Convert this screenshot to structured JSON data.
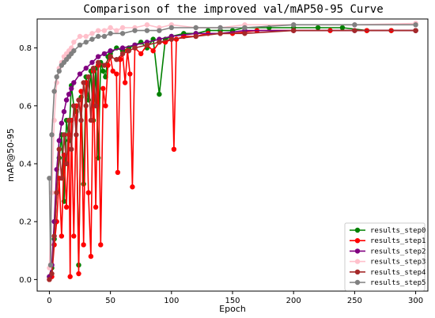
{
  "chart_data": {
    "type": "line",
    "title": "Comparison of the improved val/mAP50-95 Curve",
    "xlabel": "Epoch",
    "ylabel": "mAP@50-95",
    "xlim": [
      -10,
      310
    ],
    "ylim": [
      -0.04,
      0.9
    ],
    "xticks": [
      0,
      50,
      100,
      150,
      200,
      250,
      300
    ],
    "yticks": [
      0.0,
      0.2,
      0.4,
      0.6,
      0.8
    ],
    "legend_position": "lower-right",
    "grid": false,
    "series": [
      {
        "name": "results_step0",
        "color": "#008000",
        "points": [
          [
            0,
            0.01
          ],
          [
            2,
            0.04
          ],
          [
            4,
            0.14
          ],
          [
            6,
            0.3
          ],
          [
            8,
            0.42
          ],
          [
            10,
            0.5
          ],
          [
            12,
            0.27
          ],
          [
            14,
            0.55
          ],
          [
            16,
            0.48
          ],
          [
            18,
            0.67
          ],
          [
            20,
            0.6
          ],
          [
            22,
            0.58
          ],
          [
            24,
            0.05
          ],
          [
            26,
            0.63
          ],
          [
            28,
            0.33
          ],
          [
            30,
            0.7
          ],
          [
            32,
            0.62
          ],
          [
            34,
            0.72
          ],
          [
            36,
            0.55
          ],
          [
            38,
            0.73
          ],
          [
            40,
            0.42
          ],
          [
            42,
            0.75
          ],
          [
            44,
            0.72
          ],
          [
            46,
            0.7
          ],
          [
            48,
            0.77
          ],
          [
            50,
            0.78
          ],
          [
            55,
            0.8
          ],
          [
            60,
            0.79
          ],
          [
            65,
            0.8
          ],
          [
            70,
            0.81
          ],
          [
            75,
            0.82
          ],
          [
            80,
            0.8
          ],
          [
            85,
            0.83
          ],
          [
            90,
            0.64
          ],
          [
            95,
            0.83
          ],
          [
            100,
            0.84
          ],
          [
            110,
            0.85
          ],
          [
            120,
            0.85
          ],
          [
            130,
            0.86
          ],
          [
            140,
            0.86
          ],
          [
            150,
            0.86
          ],
          [
            160,
            0.87
          ],
          [
            180,
            0.87
          ],
          [
            200,
            0.87
          ],
          [
            220,
            0.87
          ],
          [
            240,
            0.87
          ],
          [
            260,
            0.86
          ],
          [
            280,
            0.86
          ],
          [
            300,
            0.86
          ]
        ]
      },
      {
        "name": "results_step1",
        "color": "#ff0000",
        "points": [
          [
            0,
            0.0
          ],
          [
            2,
            0.01
          ],
          [
            4,
            0.12
          ],
          [
            6,
            0.2
          ],
          [
            8,
            0.35
          ],
          [
            10,
            0.15
          ],
          [
            12,
            0.43
          ],
          [
            14,
            0.25
          ],
          [
            16,
            0.5
          ],
          [
            17,
            0.01
          ],
          [
            18,
            0.55
          ],
          [
            20,
            0.15
          ],
          [
            22,
            0.6
          ],
          [
            24,
            0.02
          ],
          [
            26,
            0.65
          ],
          [
            28,
            0.12
          ],
          [
            30,
            0.68
          ],
          [
            32,
            0.3
          ],
          [
            34,
            0.08
          ],
          [
            36,
            0.72
          ],
          [
            38,
            0.25
          ],
          [
            40,
            0.74
          ],
          [
            42,
            0.12
          ],
          [
            44,
            0.66
          ],
          [
            46,
            0.6
          ],
          [
            48,
            0.74
          ],
          [
            50,
            0.77
          ],
          [
            52,
            0.72
          ],
          [
            55,
            0.71
          ],
          [
            56,
            0.37
          ],
          [
            58,
            0.76
          ],
          [
            60,
            0.78
          ],
          [
            62,
            0.68
          ],
          [
            64,
            0.79
          ],
          [
            66,
            0.71
          ],
          [
            68,
            0.32
          ],
          [
            70,
            0.8
          ],
          [
            75,
            0.78
          ],
          [
            80,
            0.81
          ],
          [
            85,
            0.79
          ],
          [
            90,
            0.82
          ],
          [
            95,
            0.82
          ],
          [
            100,
            0.83
          ],
          [
            102,
            0.45
          ],
          [
            104,
            0.83
          ],
          [
            110,
            0.84
          ],
          [
            120,
            0.84
          ],
          [
            130,
            0.85
          ],
          [
            140,
            0.85
          ],
          [
            150,
            0.85
          ],
          [
            170,
            0.86
          ],
          [
            200,
            0.86
          ],
          [
            230,
            0.86
          ],
          [
            260,
            0.86
          ],
          [
            280,
            0.86
          ],
          [
            300,
            0.86
          ]
        ]
      },
      {
        "name": "results_step2",
        "color": "#800080",
        "points": [
          [
            0,
            0.01
          ],
          [
            2,
            0.05
          ],
          [
            4,
            0.2
          ],
          [
            6,
            0.38
          ],
          [
            8,
            0.48
          ],
          [
            10,
            0.54
          ],
          [
            12,
            0.58
          ],
          [
            14,
            0.62
          ],
          [
            16,
            0.64
          ],
          [
            18,
            0.66
          ],
          [
            20,
            0.68
          ],
          [
            25,
            0.71
          ],
          [
            30,
            0.73
          ],
          [
            35,
            0.75
          ],
          [
            40,
            0.77
          ],
          [
            45,
            0.78
          ],
          [
            50,
            0.79
          ],
          [
            60,
            0.8
          ],
          [
            70,
            0.81
          ],
          [
            80,
            0.82
          ],
          [
            90,
            0.83
          ],
          [
            100,
            0.84
          ],
          [
            120,
            0.85
          ],
          [
            140,
            0.85
          ],
          [
            160,
            0.86
          ],
          [
            200,
            0.86
          ],
          [
            250,
            0.86
          ],
          [
            300,
            0.86
          ]
        ]
      },
      {
        "name": "results_step3",
        "color": "#ffc0cb",
        "points": [
          [
            0,
            0.04
          ],
          [
            2,
            0.3
          ],
          [
            4,
            0.55
          ],
          [
            6,
            0.68
          ],
          [
            8,
            0.73
          ],
          [
            10,
            0.75
          ],
          [
            12,
            0.77
          ],
          [
            14,
            0.78
          ],
          [
            16,
            0.79
          ],
          [
            18,
            0.8
          ],
          [
            20,
            0.82
          ],
          [
            25,
            0.84
          ],
          [
            30,
            0.84
          ],
          [
            35,
            0.85
          ],
          [
            40,
            0.86
          ],
          [
            45,
            0.86
          ],
          [
            50,
            0.87
          ],
          [
            55,
            0.86
          ],
          [
            60,
            0.87
          ],
          [
            70,
            0.87
          ],
          [
            80,
            0.88
          ],
          [
            90,
            0.87
          ],
          [
            100,
            0.88
          ],
          [
            120,
            0.87
          ],
          [
            140,
            0.87
          ],
          [
            160,
            0.88
          ],
          [
            200,
            0.88
          ],
          [
            250,
            0.88
          ],
          [
            300,
            0.885
          ]
        ]
      },
      {
        "name": "results_step4",
        "color": "#a52a2a",
        "points": [
          [
            0,
            0.0
          ],
          [
            2,
            0.02
          ],
          [
            4,
            0.15
          ],
          [
            6,
            0.3
          ],
          [
            8,
            0.45
          ],
          [
            10,
            0.35
          ],
          [
            12,
            0.5
          ],
          [
            14,
            0.4
          ],
          [
            16,
            0.55
          ],
          [
            18,
            0.45
          ],
          [
            20,
            0.6
          ],
          [
            22,
            0.5
          ],
          [
            24,
            0.62
          ],
          [
            26,
            0.55
          ],
          [
            28,
            0.68
          ],
          [
            30,
            0.6
          ],
          [
            32,
            0.7
          ],
          [
            34,
            0.55
          ],
          [
            36,
            0.73
          ],
          [
            38,
            0.6
          ],
          [
            40,
            0.75
          ],
          [
            45,
            0.74
          ],
          [
            50,
            0.77
          ],
          [
            55,
            0.76
          ],
          [
            60,
            0.78
          ],
          [
            65,
            0.79
          ],
          [
            70,
            0.8
          ],
          [
            80,
            0.81
          ],
          [
            90,
            0.82
          ],
          [
            100,
            0.83
          ],
          [
            120,
            0.84
          ],
          [
            140,
            0.85
          ],
          [
            160,
            0.85
          ],
          [
            200,
            0.86
          ],
          [
            250,
            0.86
          ],
          [
            300,
            0.86
          ]
        ]
      },
      {
        "name": "results_step5",
        "color": "#808080",
        "points": [
          [
            0,
            0.35
          ],
          [
            1,
            0.05
          ],
          [
            2,
            0.5
          ],
          [
            4,
            0.65
          ],
          [
            6,
            0.7
          ],
          [
            8,
            0.72
          ],
          [
            10,
            0.74
          ],
          [
            12,
            0.75
          ],
          [
            14,
            0.76
          ],
          [
            16,
            0.77
          ],
          [
            18,
            0.78
          ],
          [
            20,
            0.79
          ],
          [
            25,
            0.81
          ],
          [
            30,
            0.82
          ],
          [
            35,
            0.83
          ],
          [
            40,
            0.84
          ],
          [
            45,
            0.84
          ],
          [
            50,
            0.85
          ],
          [
            60,
            0.85
          ],
          [
            70,
            0.86
          ],
          [
            80,
            0.86
          ],
          [
            90,
            0.86
          ],
          [
            100,
            0.87
          ],
          [
            120,
            0.87
          ],
          [
            140,
            0.87
          ],
          [
            160,
            0.87
          ],
          [
            200,
            0.88
          ],
          [
            250,
            0.88
          ],
          [
            300,
            0.88
          ]
        ]
      }
    ]
  }
}
